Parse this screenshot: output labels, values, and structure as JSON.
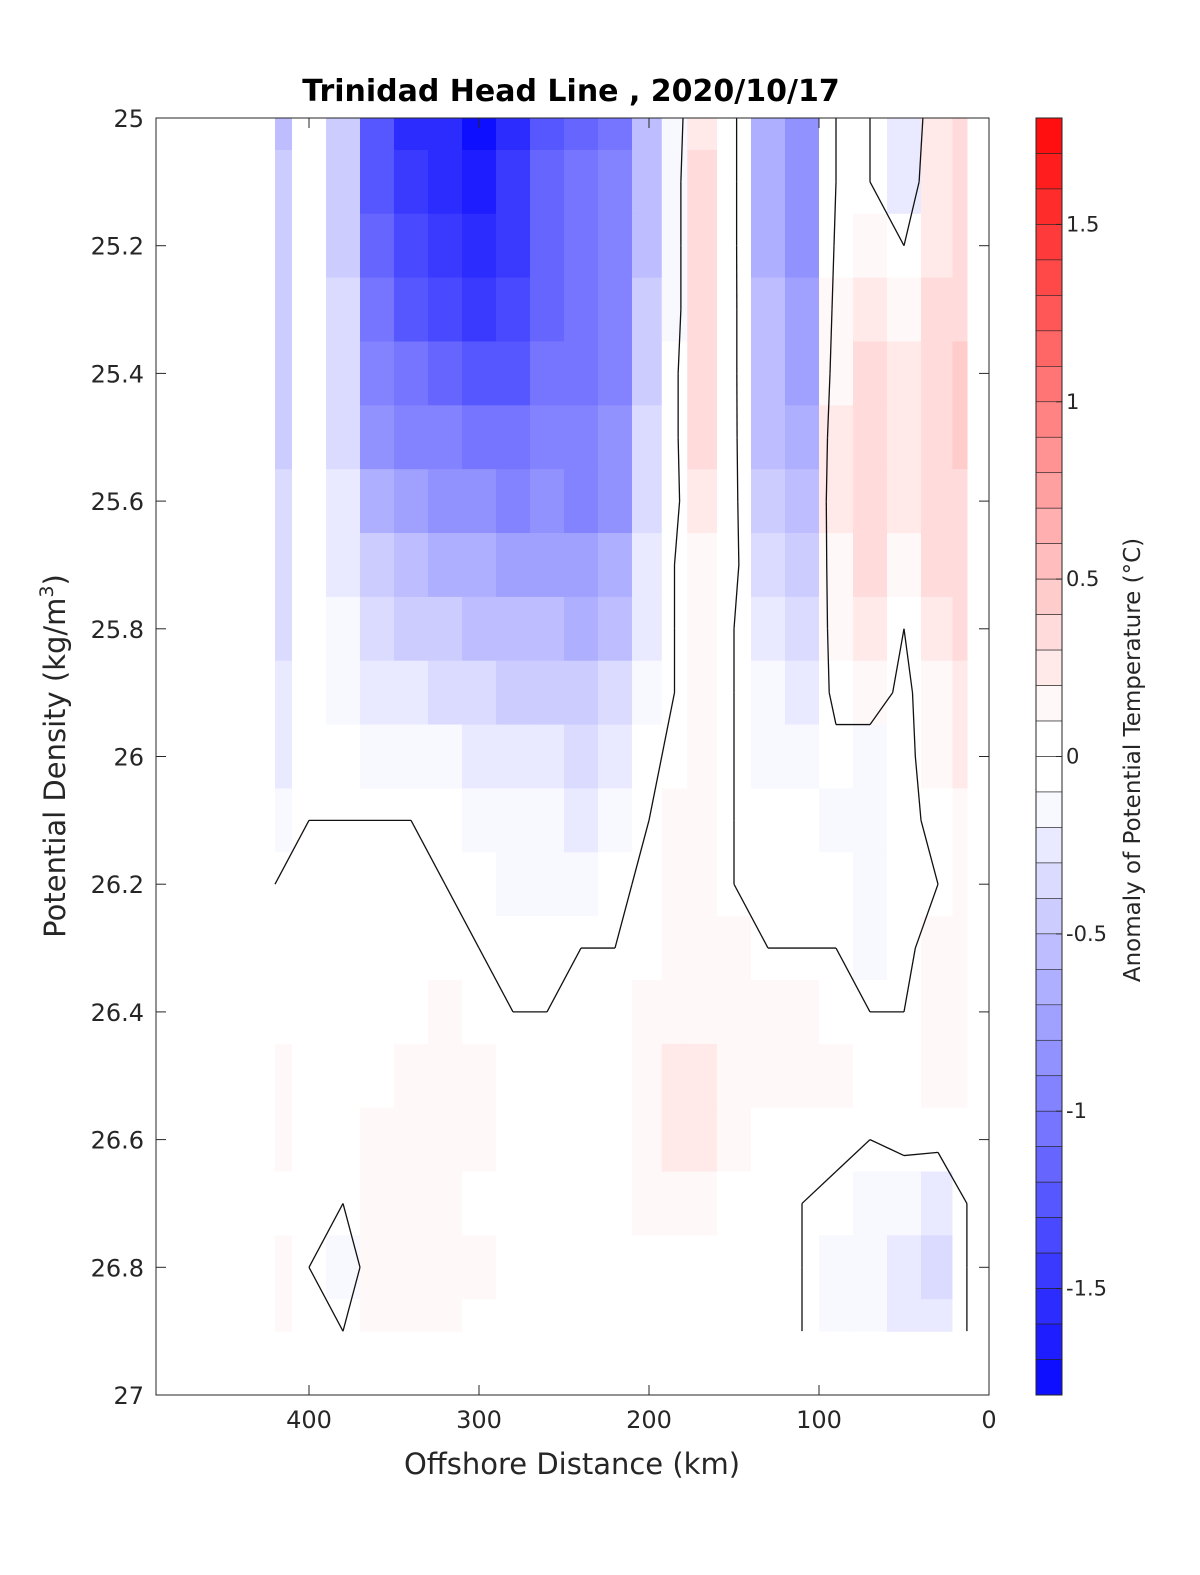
{
  "chart_data": {
    "type": "heatmap",
    "title": "Trinidad Head Line , 2020/10/17",
    "xlabel": "Offshore Distance (km)",
    "ylabel": "Potential Density (kg/m",
    "ylabel_sup": "3",
    "ylabel_close": ")",
    "colorbar_label": "Anomaly of Potential Temperature (°C)",
    "xlim": [
      490,
      0
    ],
    "ylim": [
      25,
      27
    ],
    "x_reversed": true,
    "y_reversed": true,
    "xticks": [
      400,
      300,
      200,
      100,
      0
    ],
    "yticks": [
      25,
      25.2,
      25.4,
      25.6,
      25.8,
      26,
      26.2,
      26.4,
      26.6,
      26.8,
      27
    ],
    "ytick_labels": [
      "25",
      "25.2",
      "25.4",
      "25.6",
      "25.8",
      "26",
      "26.2",
      "26.4",
      "26.6",
      "26.8",
      "27"
    ],
    "colorbar_range": [
      -1.8,
      1.8
    ],
    "colorbar_step": 0.1,
    "colorbar_ticks": [
      1.5,
      1,
      0.5,
      0,
      -0.5,
      -1,
      -1.5
    ],
    "colorbar_tick_labels": [
      "1.5",
      "1",
      "0.5",
      "0",
      "-0.5",
      "-1",
      "-1.5"
    ],
    "colormap": {
      "negative": "#0000ff",
      "zero": "#ffffff",
      "positive": "#ff0000"
    },
    "contour_level": 0,
    "data_extent": {
      "x": [
        420,
        13
      ],
      "y": [
        25,
        26.9
      ]
    },
    "grid": false,
    "x": [
      420,
      400,
      380,
      360,
      340,
      320,
      300,
      280,
      260,
      240,
      220,
      200,
      185,
      170,
      150,
      130,
      110,
      90,
      70,
      50,
      30,
      13
    ],
    "y": [
      25,
      25.1,
      25.2,
      25.3,
      25.4,
      25.5,
      25.6,
      25.7,
      25.8,
      25.9,
      26,
      26.1,
      26.2,
      26.3,
      26.4,
      26.5,
      26.6,
      26.7,
      26.8,
      26.9
    ],
    "z": [
      [
        -0.5,
        -0.05,
        -0.4,
        -1.2,
        -1.5,
        -1.55,
        -1.7,
        -1.5,
        -1.2,
        -1.1,
        -1.0,
        -0.5,
        -0.1,
        0.2,
        0.05,
        -0.6,
        -0.8,
        0.0,
        0.0,
        -0.25,
        0.2,
        0.3
      ],
      [
        -0.45,
        -0.05,
        -0.4,
        -1.2,
        -1.4,
        -1.5,
        -1.6,
        -1.45,
        -1.15,
        -1.05,
        -0.95,
        -0.5,
        -0.1,
        0.3,
        0.05,
        -0.6,
        -0.8,
        0.0,
        0.0,
        -0.2,
        0.25,
        0.3
      ],
      [
        -0.45,
        -0.05,
        -0.4,
        -1.15,
        -1.35,
        -1.4,
        -1.5,
        -1.4,
        -1.1,
        -1.0,
        -0.95,
        -0.5,
        -0.1,
        0.3,
        0.05,
        -0.6,
        -0.8,
        0.05,
        0.1,
        0.0,
        0.25,
        0.3
      ],
      [
        -0.4,
        -0.05,
        -0.35,
        -1.0,
        -1.2,
        -1.3,
        -1.4,
        -1.3,
        -1.1,
        -1.0,
        -0.9,
        -0.45,
        -0.1,
        0.3,
        0.05,
        -0.55,
        -0.75,
        0.1,
        0.2,
        0.15,
        0.3,
        0.35
      ],
      [
        -0.4,
        -0.05,
        -0.3,
        -0.9,
        -1.05,
        -1.1,
        -1.2,
        -1.2,
        -1.0,
        -1.0,
        -0.9,
        -0.4,
        -0.05,
        0.3,
        0.05,
        -0.55,
        -0.7,
        0.15,
        0.3,
        0.2,
        0.3,
        0.4
      ],
      [
        -0.4,
        -0.05,
        -0.3,
        -0.8,
        -0.9,
        -0.95,
        -1.0,
        -1.05,
        -0.95,
        -0.95,
        -0.85,
        -0.35,
        -0.05,
        0.3,
        0.05,
        -0.5,
        -0.6,
        0.2,
        0.35,
        0.2,
        0.3,
        0.4
      ],
      [
        -0.35,
        -0.05,
        -0.25,
        -0.6,
        -0.7,
        -0.8,
        -0.8,
        -0.9,
        -0.85,
        -0.9,
        -0.8,
        -0.3,
        -0.05,
        0.2,
        0.05,
        -0.4,
        -0.5,
        0.2,
        0.3,
        0.2,
        0.3,
        0.35
      ],
      [
        -0.35,
        -0.05,
        -0.2,
        -0.45,
        -0.55,
        -0.6,
        -0.65,
        -0.7,
        -0.7,
        -0.75,
        -0.65,
        -0.25,
        0.0,
        0.15,
        0.05,
        -0.3,
        -0.4,
        0.15,
        0.3,
        0.1,
        0.3,
        0.35
      ],
      [
        -0.3,
        -0.05,
        -0.15,
        -0.3,
        -0.4,
        -0.45,
        -0.5,
        -0.55,
        -0.55,
        -0.6,
        -0.5,
        -0.2,
        0.0,
        0.15,
        0.0,
        -0.2,
        -0.3,
        0.1,
        0.25,
        0.0,
        0.2,
        0.3
      ],
      [
        -0.25,
        -0.05,
        -0.1,
        -0.2,
        -0.25,
        -0.3,
        -0.3,
        -0.4,
        -0.4,
        -0.45,
        -0.35,
        -0.1,
        0.0,
        0.15,
        0.0,
        -0.15,
        -0.2,
        0.05,
        0.1,
        -0.05,
        0.15,
        0.25
      ],
      [
        -0.2,
        -0.05,
        -0.05,
        -0.1,
        -0.1,
        -0.15,
        -0.2,
        -0.25,
        -0.25,
        -0.3,
        -0.2,
        -0.05,
        0.05,
        0.15,
        0.0,
        -0.1,
        -0.1,
        -0.05,
        -0.1,
        -0.05,
        0.1,
        0.2
      ],
      [
        -0.1,
        0.0,
        0.0,
        0.0,
        0.0,
        -0.05,
        -0.1,
        -0.15,
        -0.15,
        -0.2,
        -0.1,
        0.0,
        0.1,
        0.15,
        0.0,
        -0.05,
        -0.05,
        -0.1,
        -0.1,
        -0.05,
        0.05,
        0.15
      ],
      [
        0.0,
        0.0,
        0.0,
        0.0,
        0.0,
        0.0,
        -0.05,
        -0.1,
        -0.1,
        -0.1,
        -0.05,
        0.05,
        0.1,
        0.15,
        0.0,
        -0.05,
        -0.05,
        -0.05,
        -0.1,
        -0.05,
        0.0,
        0.1
      ],
      [
        0.0,
        0.0,
        0.0,
        0.0,
        0.0,
        0.0,
        0.0,
        -0.05,
        -0.05,
        0.0,
        0.0,
        0.05,
        0.1,
        0.15,
        0.1,
        0.0,
        0.0,
        0.0,
        -0.1,
        -0.05,
        0.1,
        0.1
      ],
      [
        0.0,
        0.0,
        0.0,
        0.05,
        0.05,
        0.1,
        0.05,
        0.0,
        0.0,
        0.0,
        0.05,
        0.1,
        0.15,
        0.15,
        0.1,
        0.1,
        0.1,
        0.05,
        0.0,
        0.0,
        0.1,
        0.1
      ],
      [
        0.1,
        0.0,
        0.0,
        0.05,
        0.1,
        0.15,
        0.1,
        0.0,
        0.0,
        0.05,
        0.05,
        0.15,
        0.25,
        0.25,
        0.15,
        0.1,
        0.15,
        0.1,
        0.05,
        0.05,
        0.15,
        0.1
      ],
      [
        0.1,
        0.0,
        0.0,
        0.1,
        0.1,
        0.1,
        0.1,
        0.0,
        0.0,
        0.05,
        0.05,
        0.15,
        0.2,
        0.2,
        0.1,
        0.05,
        0.05,
        0.05,
        0.0,
        0.05,
        0.05,
        0.0
      ],
      [
        0.05,
        0.0,
        0.0,
        0.1,
        0.1,
        0.1,
        0.05,
        0.0,
        0.0,
        0.0,
        0.05,
        0.1,
        0.1,
        0.1,
        0.05,
        0.0,
        0.0,
        -0.05,
        -0.1,
        -0.15,
        -0.2,
        0.0
      ],
      [
        0.1,
        0.0,
        -0.1,
        0.1,
        0.1,
        0.15,
        0.1,
        0.0,
        0.0,
        0.0,
        0.05,
        0.05,
        0.05,
        0.05,
        0.0,
        0.0,
        0.0,
        -0.1,
        -0.15,
        -0.25,
        -0.3,
        0.0
      ],
      [
        0.1,
        0.0,
        0.0,
        0.1,
        0.1,
        0.1,
        0.05,
        0.0,
        0.0,
        0.0,
        0.0,
        0.05,
        0.05,
        0.05,
        0.0,
        0.0,
        0.0,
        -0.1,
        -0.15,
        -0.25,
        -0.2,
        0.0
      ]
    ]
  }
}
